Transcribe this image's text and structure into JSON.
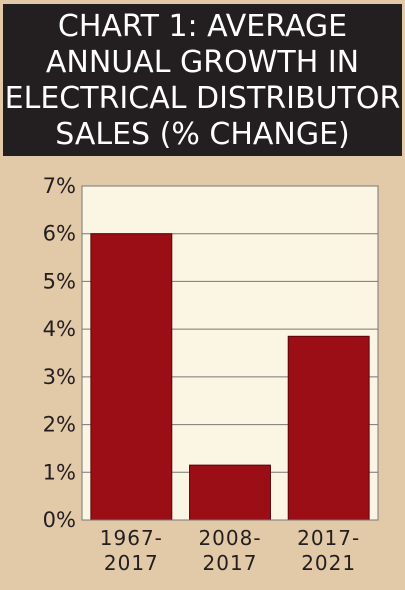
{
  "chart_data": {
    "type": "bar",
    "title_lines": [
      "CHART 1: AVERAGE",
      "ANNUAL GROWTH IN",
      "ELECTRICAL DISTRIBUTOR",
      "SALES (% CHANGE)"
    ],
    "categories": [
      [
        "1967-",
        "2017"
      ],
      [
        "2008-",
        "2017"
      ],
      [
        "2017-",
        "2021"
      ]
    ],
    "values": [
      6.0,
      1.15,
      3.85
    ],
    "ylim": [
      0,
      7
    ],
    "yticks": [
      {
        "value": 0,
        "label": "0%"
      },
      {
        "value": 1,
        "label": "1%"
      },
      {
        "value": 2,
        "label": "2%"
      },
      {
        "value": 3,
        "label": "3%"
      },
      {
        "value": 4,
        "label": "4%"
      },
      {
        "value": 5,
        "label": "5%"
      },
      {
        "value": 6,
        "label": "6%"
      },
      {
        "value": 7,
        "label": "7%"
      }
    ],
    "grid": true,
    "colors": {
      "bar": "#9b0e15",
      "plot_background": "#fbf5e3",
      "frame_background": "#e2c9a8",
      "title_background": "#231f20",
      "grid": "#777777"
    }
  }
}
